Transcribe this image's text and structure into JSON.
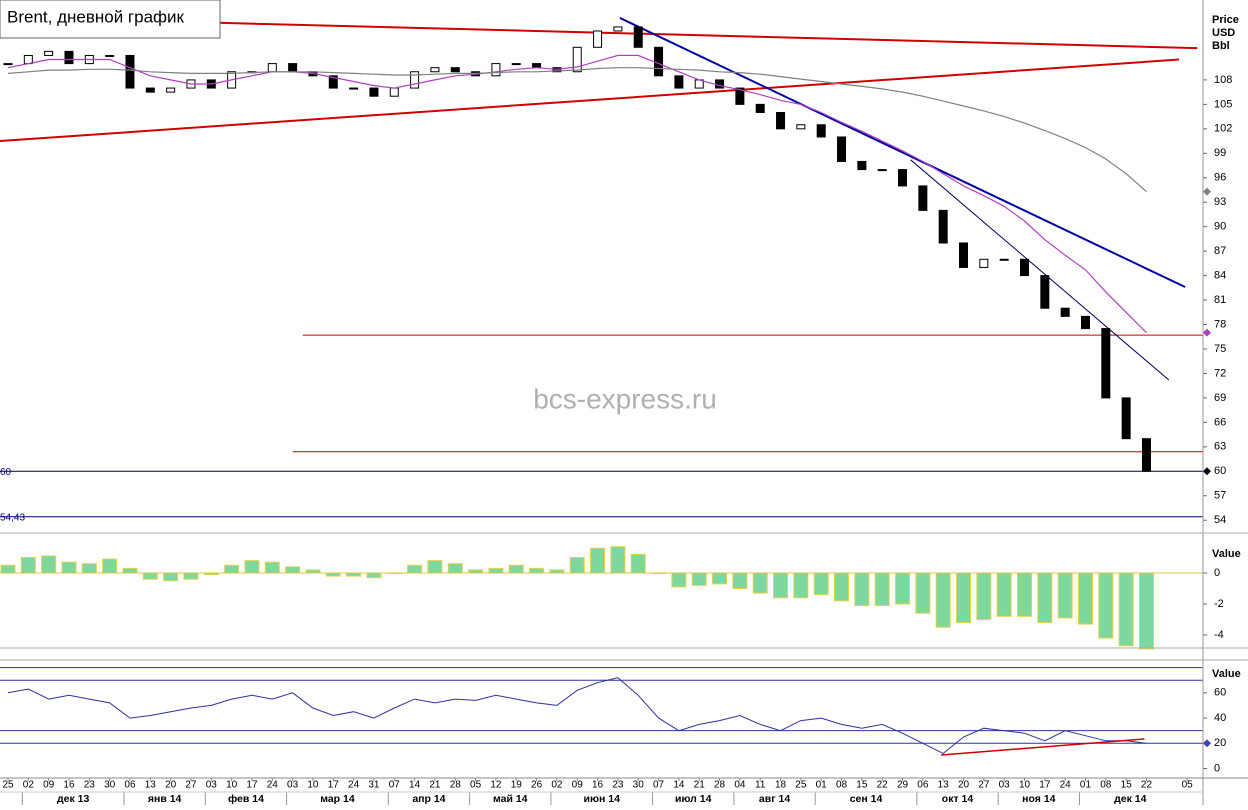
{
  "chart_data": {
    "type": "candlestick",
    "title": "Brent, дневной график",
    "watermark": "bcs-express.ru",
    "y_axis_label": [
      "Price",
      "USD",
      "Bbl"
    ],
    "x": [
      "25",
      "02",
      "09",
      "16",
      "23",
      "30",
      "06",
      "13",
      "20",
      "27",
      "03",
      "10",
      "17",
      "24",
      "03",
      "10",
      "17",
      "24",
      "31",
      "07",
      "14",
      "21",
      "28",
      "05",
      "12",
      "19",
      "26",
      "02",
      "09",
      "16",
      "23",
      "30",
      "07",
      "14",
      "21",
      "28",
      "04",
      "11",
      "18",
      "25",
      "01",
      "08",
      "15",
      "22",
      "29",
      "06",
      "13",
      "20",
      "27",
      "03",
      "10",
      "17",
      "24",
      "01",
      "08",
      "15",
      "22",
      null,
      "05"
    ],
    "months": [
      "дек 13",
      "янв 14",
      "фев 14",
      "мар 14",
      "апр 14",
      "май 14",
      "июн 14",
      "июл 14",
      "авг 14",
      "сен 14",
      "окт 14",
      "ноя 14",
      "дек 14"
    ],
    "ylim": [
      52.8,
      117.8
    ],
    "yticks": [
      108,
      105,
      102,
      99,
      96,
      93,
      90,
      87,
      84,
      81,
      78,
      75,
      72,
      69,
      66,
      63,
      60,
      57,
      54
    ],
    "series": [
      {
        "name": "close",
        "color": "#000000",
        "values": [
          110,
          111,
          111.5,
          110,
          111,
          111,
          107,
          106.5,
          107,
          108,
          107,
          109,
          109,
          110,
          109,
          108.5,
          107,
          107,
          106,
          107,
          109,
          109.5,
          109,
          108.5,
          110,
          110,
          109.5,
          109,
          112,
          114,
          114.5,
          112,
          108.5,
          107,
          108,
          107,
          105,
          104,
          102,
          102.5,
          101,
          98,
          97,
          97,
          95,
          92,
          88,
          85,
          86,
          86,
          84,
          80,
          79,
          77.5,
          69,
          64,
          60,
          null,
          null
        ]
      },
      {
        "name": "ma-short",
        "color": "#b040c0",
        "values": [
          109.5,
          110,
          110.5,
          110.5,
          110.5,
          110.5,
          109.5,
          108.5,
          108,
          107.5,
          107.5,
          108,
          108.5,
          109,
          109,
          108.8,
          108.3,
          107.8,
          107.3,
          107,
          107.5,
          108,
          108.5,
          108.7,
          109,
          109.3,
          109.5,
          109.3,
          109.6,
          110.3,
          111,
          111,
          110,
          109,
          108,
          107.3,
          106.8,
          106.2,
          105.5,
          105,
          104,
          102.8,
          101.7,
          100.5,
          99.3,
          98,
          96.5,
          95,
          93.8,
          92.5,
          90.7,
          88.4,
          86.5,
          84.7,
          82,
          79.5,
          77,
          null,
          null
        ]
      },
      {
        "name": "ma-long",
        "color": "#808080",
        "values": [
          108.8,
          109,
          109.2,
          109.2,
          109.3,
          109.3,
          109.2,
          109,
          108.9,
          108.8,
          108.8,
          108.8,
          108.9,
          109,
          109,
          109,
          108.9,
          108.8,
          108.7,
          108.6,
          108.6,
          108.7,
          108.8,
          108.8,
          108.9,
          109,
          109,
          109.1,
          109.2,
          109.4,
          109.5,
          109.5,
          109.4,
          109.3,
          109.2,
          109,
          108.9,
          108.7,
          108.4,
          108.1,
          107.8,
          107.5,
          107.2,
          106.9,
          106.5,
          106,
          105.4,
          104.8,
          104.2,
          103.5,
          102.7,
          101.8,
          100.8,
          99.7,
          98.3,
          96.5,
          94.3,
          null,
          null
        ]
      }
    ],
    "trendlines": [
      {
        "color": "#d00000",
        "width": 2,
        "x": [
          -0.4,
          58.5
        ],
        "y": [
          115.7,
          111.9
        ]
      },
      {
        "color": "#d00000",
        "width": 2,
        "x": [
          -0.4,
          57.6
        ],
        "y": [
          100.5,
          110.5
        ]
      },
      {
        "color": "#0000a0",
        "width": 2,
        "x": [
          30.1,
          57.9
        ],
        "y": [
          115.6,
          82.6
        ]
      },
      {
        "color": "#000060",
        "width": 1,
        "x": [
          44.4,
          57.1
        ],
        "y": [
          98.2,
          71.2
        ]
      }
    ],
    "hlines": [
      {
        "value": 76.7,
        "from": 14.5,
        "color": "#c00000"
      },
      {
        "value": 62.4,
        "from": 14.0,
        "color": "#c00000"
      },
      {
        "value": 60,
        "from": -0.4,
        "color": "#000040",
        "label": "60"
      },
      {
        "value": 54.43,
        "from": -0.4,
        "color": "#000080",
        "label": "54,43"
      }
    ],
    "macd": {
      "axis_label": "Value",
      "ylim": [
        -4.97,
        2.13
      ],
      "yticks": [
        0,
        -2,
        -4
      ],
      "color": "#7cd89c",
      "values": [
        0.5,
        1,
        1.1,
        0.7,
        0.6,
        0.9,
        0.3,
        -0.4,
        -0.5,
        -0.4,
        -0.1,
        0.5,
        0.8,
        0.7,
        0.4,
        0.2,
        -0.2,
        -0.2,
        -0.3,
        0,
        0.5,
        0.8,
        0.6,
        0.2,
        0.3,
        0.5,
        0.3,
        0.2,
        1,
        1.6,
        1.7,
        1.2,
        0,
        -0.9,
        -0.8,
        -0.7,
        -1,
        -1.3,
        -1.6,
        -1.6,
        -1.4,
        -1.8,
        -2.1,
        -2.1,
        -2,
        -2.6,
        -3.5,
        -3.2,
        -3,
        -2.8,
        -2.8,
        -3.2,
        -2.9,
        -3.3,
        -4.2,
        -4.7,
        -4.9,
        null,
        null
      ]
    },
    "rsi": {
      "axis_label": "Value",
      "ylim": [
        -17,
        86
      ],
      "yticks": [
        60,
        40,
        20,
        0
      ],
      "levels": [
        80,
        70,
        30,
        20
      ],
      "color": "#3030a0",
      "values": [
        60,
        63,
        55,
        58,
        55,
        52,
        40,
        42,
        45,
        48,
        50,
        55,
        58,
        55,
        60,
        48,
        42,
        45,
        40,
        48,
        55,
        52,
        55,
        54,
        58,
        55,
        52,
        50,
        62,
        68,
        72,
        58,
        40,
        30,
        35,
        38,
        42,
        35,
        30,
        38,
        40,
        35,
        32,
        35,
        28,
        20,
        12,
        25,
        32,
        30,
        28,
        22,
        30,
        26,
        22,
        22,
        20,
        null,
        null
      ],
      "trendline": {
        "color": "#d00000",
        "x": [
          45.9,
          55.9
        ],
        "y": [
          10.7,
          23.4
        ]
      }
    }
  }
}
